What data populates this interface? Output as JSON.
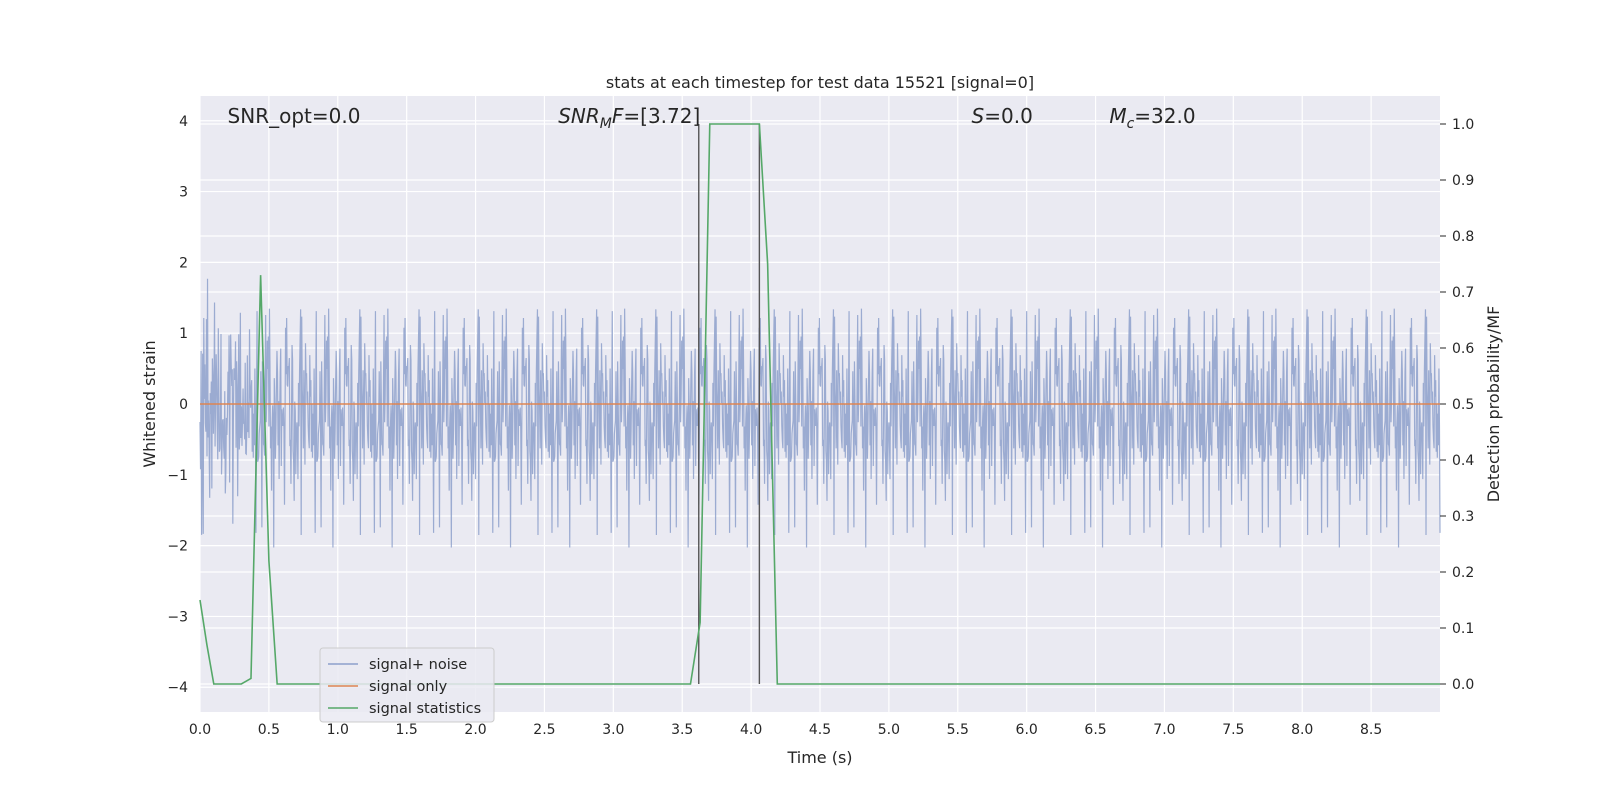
{
  "chart_data": {
    "type": "line",
    "title": "stats at each timestep for test data 15521 [signal=0]",
    "xlabel": "Time (s)",
    "ylabel": "Whitened strain",
    "y2label": "Detection probability/MF",
    "xlim": [
      0,
      9.0
    ],
    "ylim": [
      -4.35,
      4.35
    ],
    "y2lim": [
      -0.05,
      1.05
    ],
    "xticks": [
      "0.0",
      "0.5",
      "1.0",
      "1.5",
      "2.0",
      "2.5",
      "3.0",
      "3.5",
      "4.0",
      "4.5",
      "5.0",
      "5.5",
      "6.0",
      "6.5",
      "7.0",
      "7.5",
      "8.0",
      "8.5"
    ],
    "yticks": [
      "−4",
      "−3",
      "−2",
      "−1",
      "0",
      "1",
      "2",
      "3",
      "4"
    ],
    "y2ticks": [
      "0.0",
      "0.1",
      "0.2",
      "0.3",
      "0.4",
      "0.5",
      "0.6",
      "0.7",
      "0.8",
      "0.9",
      "1.0"
    ],
    "grid": true,
    "legend_position": "lower-left",
    "annotations": [
      {
        "parts": [
          {
            "t": "SNR_opt=0.0"
          }
        ],
        "x": 0.2
      },
      {
        "parts": [
          {
            "t": "SNR",
            "i": true
          },
          {
            "t": "M",
            "i": true,
            "sub": true
          },
          {
            "t": "F",
            "i": true
          },
          {
            "t": "=[3.72]"
          }
        ],
        "x": 2.6
      },
      {
        "parts": [
          {
            "t": "S",
            "i": true
          },
          {
            "t": "=0.0"
          }
        ],
        "x": 5.6
      },
      {
        "parts": [
          {
            "t": "M",
            "i": true
          },
          {
            "t": "c",
            "i": true,
            "sub": true
          },
          {
            "t": "=32.0"
          }
        ],
        "x": 6.6
      }
    ],
    "vlines": [
      3.62,
      4.06
    ],
    "series": [
      {
        "name": "signal+ noise",
        "color": "#8da0cb",
        "axis": "left",
        "style": "noise",
        "sample_rate": 256,
        "amplitude": 0.8,
        "ymin": -4.0,
        "ymax": 4.0
      },
      {
        "name": "signal only",
        "color": "#dd8452",
        "axis": "left",
        "x": [
          0,
          9.0
        ],
        "y": [
          0,
          0
        ]
      },
      {
        "name": "signal statistics",
        "color": "#55a868",
        "axis": "right",
        "x": [
          0.0,
          0.05,
          0.1,
          0.3,
          0.37,
          0.44,
          0.5,
          0.56,
          1.0,
          2.0,
          3.0,
          3.56,
          3.63,
          3.7,
          4.0,
          4.06,
          4.12,
          4.19,
          5.0,
          6.0,
          7.0,
          8.0,
          9.0
        ],
        "y": [
          0.15,
          0.07,
          0.0,
          0.0,
          0.01,
          0.73,
          0.22,
          0.0,
          0.0,
          0.0,
          0.0,
          0.0,
          0.11,
          1.0,
          1.0,
          1.0,
          0.75,
          0.0,
          0.0,
          0.0,
          0.0,
          0.0,
          0.0
        ]
      }
    ]
  }
}
